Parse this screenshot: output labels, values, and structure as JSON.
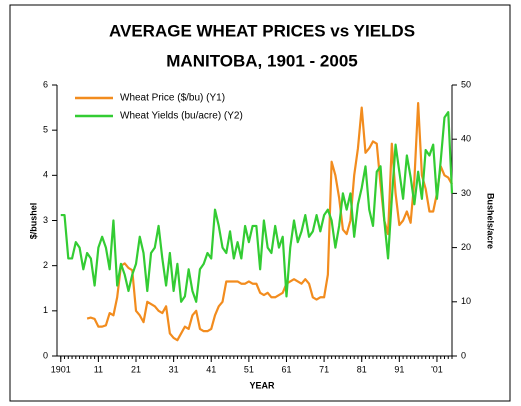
{
  "chart_data": {
    "type": "line",
    "title": "AVERAGE WHEAT PRICES vs YIELDS",
    "subtitle": "MANITOBA, 1901 - 2005",
    "xlabel": "YEAR",
    "ylabel": "$/bushel",
    "y2label": "Bushels/acre",
    "x": [
      1901,
      1902,
      1903,
      1904,
      1905,
      1906,
      1907,
      1908,
      1909,
      1910,
      1911,
      1912,
      1913,
      1914,
      1915,
      1916,
      1917,
      1918,
      1919,
      1920,
      1921,
      1922,
      1923,
      1924,
      1925,
      1926,
      1927,
      1928,
      1929,
      1930,
      1931,
      1932,
      1933,
      1934,
      1935,
      1936,
      1937,
      1938,
      1939,
      1940,
      1941,
      1942,
      1943,
      1944,
      1945,
      1946,
      1947,
      1948,
      1949,
      1950,
      1951,
      1952,
      1953,
      1954,
      1955,
      1956,
      1957,
      1958,
      1959,
      1960,
      1961,
      1962,
      1963,
      1964,
      1965,
      1966,
      1967,
      1968,
      1969,
      1970,
      1971,
      1972,
      1973,
      1974,
      1975,
      1976,
      1977,
      1978,
      1979,
      1980,
      1981,
      1982,
      1983,
      1984,
      1985,
      1986,
      1987,
      1988,
      1989,
      1990,
      1991,
      1992,
      1993,
      1994,
      1995,
      1996,
      1997,
      1998,
      1999,
      2000,
      2001,
      2002,
      2003,
      2004,
      2005
    ],
    "series": [
      {
        "name": "Wheat Price ($/bu) (Y1)",
        "color": "#f28c1e",
        "values": [
          null,
          null,
          null,
          null,
          null,
          null,
          null,
          0.83,
          0.85,
          0.82,
          0.65,
          0.65,
          0.68,
          0.95,
          0.9,
          1.3,
          2.0,
          2.05,
          1.95,
          1.9,
          1.0,
          0.9,
          0.75,
          1.2,
          1.15,
          1.1,
          1.0,
          0.95,
          1.1,
          0.5,
          0.4,
          0.35,
          0.5,
          0.65,
          0.6,
          0.9,
          1.0,
          0.6,
          0.55,
          0.55,
          0.6,
          0.9,
          1.1,
          1.2,
          1.65,
          1.65,
          1.65,
          1.65,
          1.6,
          1.6,
          1.65,
          1.6,
          1.6,
          1.4,
          1.35,
          1.4,
          1.3,
          1.3,
          1.35,
          1.4,
          1.6,
          1.65,
          1.7,
          1.65,
          1.6,
          1.7,
          1.6,
          1.3,
          1.25,
          1.3,
          1.3,
          1.8,
          4.3,
          4.0,
          3.5,
          2.8,
          2.7,
          3.0,
          4.0,
          4.6,
          5.5,
          4.5,
          4.6,
          4.75,
          4.7,
          3.8,
          3.0,
          2.7,
          4.7,
          3.6,
          2.9,
          3.0,
          3.2,
          2.95,
          3.9,
          5.6,
          4.0,
          3.7,
          3.2,
          3.2,
          3.6,
          4.2,
          4.0,
          3.95,
          3.8
        ]
      },
      {
        "name": "Wheat Yields (bu/acre) (Y2)",
        "color": "#33cc33",
        "axis": "y2",
        "values": [
          26,
          26,
          18,
          18,
          21,
          20,
          16,
          19,
          18,
          13,
          20,
          22,
          20,
          16,
          25,
          13,
          17,
          15,
          12,
          15,
          17,
          22,
          19,
          12,
          19,
          20,
          24,
          18,
          13,
          19,
          12,
          17,
          10,
          11,
          16,
          12,
          10,
          16,
          17,
          19,
          18,
          27,
          24,
          20,
          19,
          23,
          18,
          21,
          18,
          24,
          21,
          24,
          24,
          16,
          25,
          20,
          19,
          24,
          20,
          22,
          11,
          20,
          25,
          21,
          23,
          26,
          22,
          23,
          26,
          23,
          26,
          27,
          25,
          20,
          24,
          30,
          27,
          30,
          22,
          28,
          31,
          35,
          27,
          24,
          34,
          35,
          25,
          18,
          29,
          39,
          34,
          29,
          37,
          33,
          28,
          34,
          29,
          38,
          37,
          39,
          29,
          36,
          44,
          45,
          30
        ]
      }
    ],
    "xlim": [
      1900,
      2005
    ],
    "xticks": [
      1901,
      {
        "value": 1911,
        "label": "11"
      },
      {
        "value": 1921,
        "label": "21"
      },
      {
        "value": 1931,
        "label": "31"
      },
      {
        "value": 1941,
        "label": "41"
      },
      {
        "value": 1951,
        "label": "51"
      },
      {
        "value": 1961,
        "label": "61"
      },
      {
        "value": 1971,
        "label": "71"
      },
      {
        "value": 1981,
        "label": "81"
      },
      {
        "value": 1991,
        "label": "91"
      },
      {
        "value": 2001,
        "label": "'01"
      }
    ],
    "ylim": [
      0,
      6
    ],
    "yticks": [
      0,
      1,
      2,
      3,
      4,
      5,
      6
    ],
    "y2lim": [
      0,
      50
    ],
    "y2ticks": [
      0,
      10,
      20,
      30,
      40,
      50
    ]
  }
}
